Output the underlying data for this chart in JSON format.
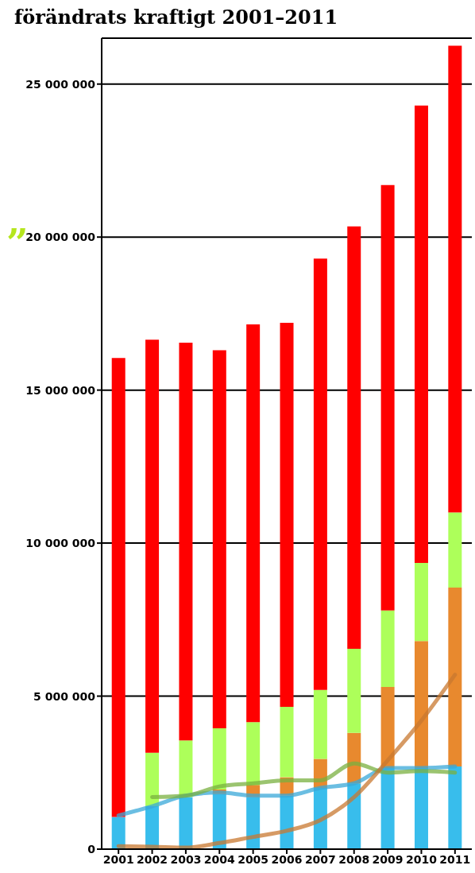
{
  "chart_data": {
    "type": "bar",
    "title": "förändrats kraftigt 2001–2011",
    "stacked": true,
    "grid": "y",
    "legend": false,
    "categories": [
      "2001",
      "2002",
      "2003",
      "2004",
      "2005",
      "2006",
      "2007",
      "2008",
      "2009",
      "2010",
      "2011"
    ],
    "ylim": [
      0,
      26500000
    ],
    "yticks": [
      {
        "value": 0,
        "label": "0"
      },
      {
        "value": 5000000,
        "label": "5 000 000"
      },
      {
        "value": 10000000,
        "label": "10 000 000"
      },
      {
        "value": 15000000,
        "label": "15 000 000"
      },
      {
        "value": 20000000,
        "label": "20 000 000"
      },
      {
        "value": 25000000,
        "label": "25 000 000"
      }
    ],
    "annotations": [
      "”"
    ],
    "series": [
      {
        "color": "#38bdec",
        "values": [
          1050000,
          1400000,
          1700000,
          1800000,
          1700000,
          1750000,
          2000000,
          2150000,
          2650000,
          2650000,
          2700000
        ]
      },
      {
        "color": "#e8892e",
        "values": [
          null,
          null,
          null,
          150000,
          400000,
          600000,
          950000,
          1650000,
          2650000,
          4150000,
          5850000
        ]
      },
      {
        "color": "#adff5a",
        "values": [
          null,
          1750000,
          1850000,
          2000000,
          2050000,
          2300000,
          2250000,
          2750000,
          2500000,
          2550000,
          2450000
        ]
      },
      {
        "color": "#ff0000",
        "values": [
          15000000,
          13500000,
          13000000,
          12350000,
          13000000,
          12550000,
          14100000,
          13800000,
          13900000,
          14950000,
          15250000
        ]
      },
      {
        "type": "line",
        "color": "#3aa8d8",
        "values": [
          1100000,
          1400000,
          1750000,
          1850000,
          1750000,
          1750000,
          2000000,
          2150000,
          2650000,
          2650000,
          2700000
        ]
      },
      {
        "type": "line",
        "color": "#7ab040",
        "values": [
          null,
          1700000,
          1750000,
          2050000,
          2150000,
          2250000,
          2250000,
          2800000,
          2500000,
          2550000,
          2500000
        ]
      },
      {
        "type": "line",
        "color": "#c87830",
        "values": [
          100000,
          80000,
          50000,
          200000,
          400000,
          600000,
          950000,
          1700000,
          2900000,
          4200000,
          5700000
        ]
      }
    ]
  }
}
